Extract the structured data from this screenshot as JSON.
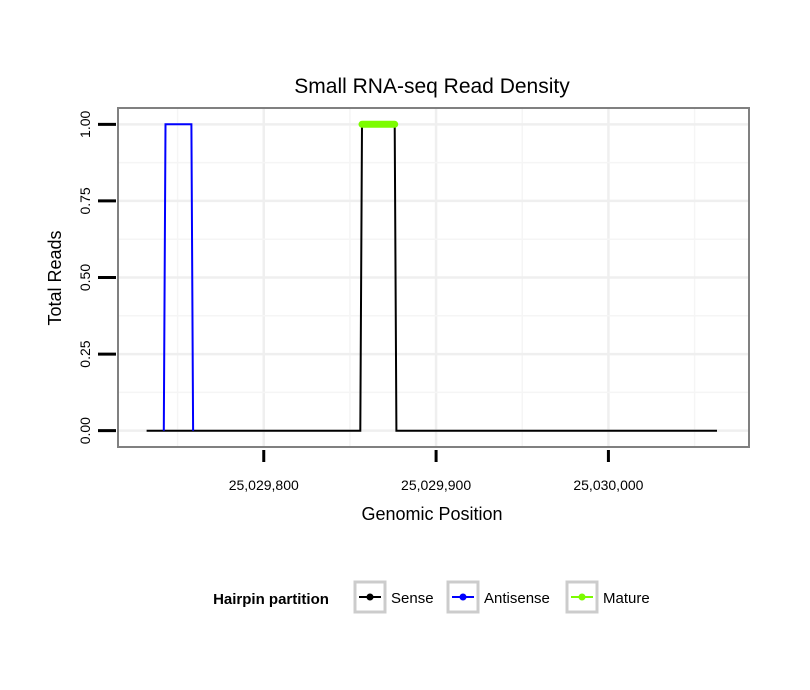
{
  "chart_data": {
    "type": "line",
    "title": "Small RNA-seq Read Density",
    "xlabel": "Genomic Position",
    "ylabel": "Total Reads",
    "xlim": [
      25029716,
      25030081
    ],
    "ylim": [
      -0.05,
      1.05
    ],
    "x_ticks": [
      25029800,
      25029900,
      25030000
    ],
    "x_tick_labels": [
      "25,029,800",
      "25,029,900",
      "25,030,000"
    ],
    "y_ticks": [
      0,
      0.25,
      0.5,
      0.75,
      1.0
    ],
    "y_tick_labels": [
      "0.00",
      "0.25",
      "0.50",
      "0.75",
      "1.00"
    ],
    "grid": true,
    "legend_position": "bottom",
    "series": [
      {
        "name": "Sense",
        "color": "#000000",
        "x": [
          25029732,
          25029856,
          25029857,
          25029876,
          25029877,
          25030063
        ],
        "y": [
          0,
          0,
          1,
          1,
          0,
          0
        ]
      },
      {
        "name": "Antisense",
        "color": "#0000ff",
        "x": [
          25029742,
          25029743,
          25029758,
          25029759,
          25029856,
          25029877
        ],
        "y": [
          0,
          1,
          1,
          0,
          null,
          0
        ]
      },
      {
        "name": "Mature",
        "color": "#7cfc00",
        "x": [
          25029857,
          25029876
        ],
        "y": [
          1,
          1
        ]
      }
    ],
    "legend": {
      "title": "Hairpin partition",
      "entries": [
        "Sense",
        "Antisense",
        "Mature"
      ]
    }
  }
}
